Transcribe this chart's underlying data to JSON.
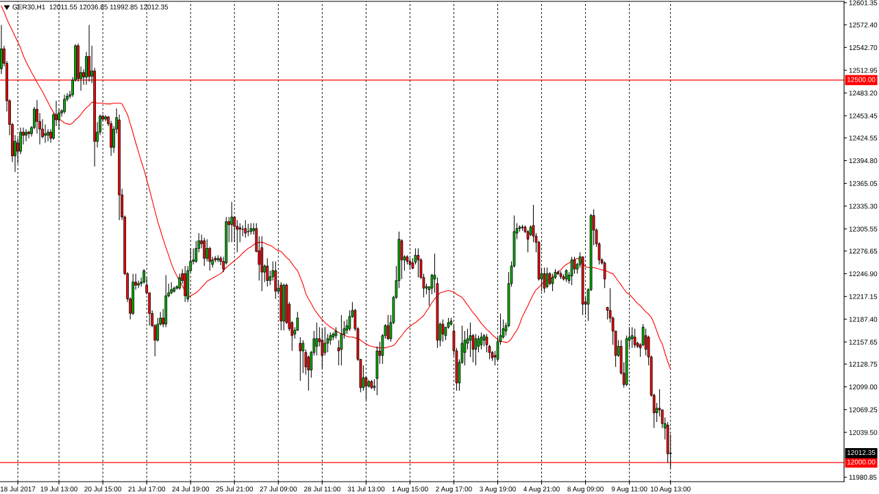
{
  "chart_data": {
    "type": "candlestick",
    "title": "GER30,H1  12011.55 12036.85 11992.85 12012.35",
    "categories": [
      null,
      null,
      null,
      null,
      null,
      null,
      "18 Jul 2017",
      null,
      null,
      null,
      null,
      null,
      null,
      null,
      null,
      null,
      null,
      null,
      null,
      null,
      null,
      "19 Jul 13:00",
      null,
      null,
      null,
      null,
      null,
      null,
      null,
      null,
      null,
      null,
      null,
      null,
      null,
      null,
      null,
      "20 Jul 15:00",
      null,
      null,
      null,
      null,
      null,
      null,
      null,
      null,
      null,
      null,
      null,
      null,
      null,
      null,
      null,
      "21 Jul 17:00",
      null,
      null,
      null,
      null,
      null,
      null,
      null,
      null,
      null,
      null,
      null,
      null,
      null,
      null,
      null,
      "24 Jul 19:00",
      null,
      null,
      null,
      null,
      null,
      null,
      null,
      null,
      null,
      null,
      null,
      null,
      null,
      null,
      null,
      "25 Jul 21:00",
      null,
      null,
      null,
      null,
      null,
      null,
      null,
      null,
      null,
      null,
      null,
      null,
      null,
      null,
      null,
      "27 Jul 09:00",
      null,
      null,
      null,
      null,
      null,
      null,
      null,
      null,
      null,
      null,
      null,
      null,
      null,
      null,
      null,
      "28 Jul 11:00",
      null,
      null,
      null,
      null,
      null,
      null,
      null,
      null,
      null,
      null,
      null,
      null,
      null,
      null,
      null,
      "31 Jul 13:00",
      null,
      null,
      null,
      null,
      null,
      null,
      null,
      null,
      null,
      null,
      null,
      null,
      null,
      null,
      null,
      "1 Aug 15:00",
      null,
      null,
      null,
      null,
      null,
      null,
      null,
      null,
      null,
      null,
      null,
      null,
      null,
      null,
      null,
      "2 Aug 17:00",
      null,
      null,
      null,
      null,
      null,
      null,
      null,
      null,
      null,
      null,
      null,
      null,
      null,
      null,
      null,
      "3 Aug 19:00",
      null,
      null,
      null,
      null,
      null,
      null,
      null,
      null,
      null,
      null,
      null,
      null,
      null,
      null,
      null,
      "4 Aug 21:00",
      null,
      null,
      null,
      null,
      null,
      null,
      null,
      null,
      null,
      null,
      null,
      null,
      null,
      null,
      null,
      "8 Aug 09:00",
      null,
      null,
      null,
      null,
      null,
      null,
      null,
      null,
      null,
      null,
      null,
      null,
      null,
      null,
      null,
      "9 Aug 11:00",
      null,
      null,
      null,
      null,
      null,
      null,
      null,
      null,
      null,
      null,
      null,
      null,
      null,
      null,
      "10 Aug 13:00"
    ],
    "ohlc": [
      [
        12515,
        12572,
        12508,
        12541
      ],
      [
        12541,
        12545,
        12518,
        12522
      ],
      [
        12522,
        12525,
        12459,
        12473
      ],
      [
        12473,
        12475,
        12428,
        12442
      ],
      [
        12442,
        12444,
        12393,
        12401
      ],
      [
        12401,
        12428,
        12380,
        12420
      ],
      [
        12418,
        12424,
        12391,
        12407
      ],
      [
        12407,
        12438,
        12403,
        12432
      ],
      [
        12432,
        12438,
        12416,
        12428
      ],
      [
        12428,
        12436,
        12420,
        12432
      ],
      [
        12432,
        12434,
        12424,
        12430
      ],
      [
        12430,
        12440,
        12426,
        12438
      ],
      [
        12438,
        12465,
        12436,
        12462
      ],
      [
        12462,
        12474,
        12430,
        12446
      ],
      [
        12446,
        12457,
        12416,
        12436
      ],
      [
        12436,
        12449,
        12424,
        12426
      ],
      [
        12428,
        12442,
        12418,
        12430
      ],
      [
        12428,
        12436,
        12420,
        12432
      ],
      [
        12432,
        12436,
        12418,
        12424
      ],
      [
        12424,
        12457,
        12422,
        12455
      ],
      [
        12455,
        12473,
        12440,
        12448
      ],
      [
        12448,
        12462,
        12436,
        12457
      ],
      [
        12457,
        12462,
        12452,
        12460
      ],
      [
        12459,
        12481,
        12456,
        12475
      ],
      [
        12475,
        12483,
        12472,
        12479
      ],
      [
        12479,
        12486,
        12476,
        12481
      ],
      [
        12481,
        12504,
        12478,
        12500
      ],
      [
        12500,
        12547,
        12498,
        12545
      ],
      [
        12545,
        12548,
        12498,
        12502
      ],
      [
        12502,
        12518,
        12486,
        12510
      ],
      [
        12510,
        12514,
        12494,
        12504
      ],
      [
        12504,
        12537,
        12494,
        12531
      ],
      [
        12531,
        12572,
        12498,
        12505
      ],
      [
        12505,
        12545,
        12496,
        12512
      ],
      [
        12512,
        12516,
        12387,
        12420
      ],
      [
        12420,
        12445,
        12412,
        12432
      ],
      [
        12432,
        12455,
        12428,
        12453
      ],
      [
        12453,
        12455,
        12447,
        12449
      ],
      [
        12449,
        12454,
        12446,
        12452
      ],
      [
        12452,
        12453,
        12440,
        12443
      ],
      [
        12443,
        12447,
        12401,
        12412
      ],
      [
        12412,
        12440,
        12405,
        12436
      ],
      [
        12436,
        12463,
        12430,
        12451
      ],
      [
        12448,
        12455,
        12317,
        12350
      ],
      [
        12350,
        12358,
        12317,
        12321
      ],
      [
        12321,
        12323,
        12245,
        12247
      ],
      [
        12247,
        12249,
        12210,
        12214
      ],
      [
        12214,
        12216,
        12187,
        12195
      ],
      [
        12195,
        12247,
        12193,
        12236
      ],
      [
        12236,
        12247,
        12226,
        12232
      ],
      [
        12232,
        12238,
        12228,
        12234
      ],
      [
        12234,
        12242,
        12230,
        12236
      ],
      [
        12236,
        12253,
        12234,
        12251
      ],
      [
        12232,
        12242,
        12220,
        12222
      ],
      [
        12222,
        12222,
        12179,
        12195
      ],
      [
        12195,
        12199,
        12177,
        12179
      ],
      [
        12179,
        12181,
        12139,
        12160
      ],
      [
        12160,
        12189,
        12158,
        12181
      ],
      [
        12181,
        12197,
        12179,
        12189
      ],
      [
        12189,
        12201,
        12177,
        12181
      ],
      [
        12181,
        12245,
        12177,
        12218
      ],
      [
        12218,
        12234,
        12216,
        12222
      ],
      [
        12222,
        12236,
        12220,
        12226
      ],
      [
        12224,
        12230,
        12222,
        12228
      ],
      [
        12228,
        12232,
        12226,
        12230
      ],
      [
        12228,
        12247,
        12226,
        12242
      ],
      [
        12247,
        12253,
        12234,
        12238
      ],
      [
        12247,
        12257,
        12210,
        12218
      ],
      [
        12214,
        12257,
        12210,
        12251
      ],
      [
        12251,
        12280,
        12249,
        12263
      ],
      [
        12263,
        12280,
        12259,
        12265
      ],
      [
        12263,
        12290,
        12261,
        12280
      ],
      [
        12280,
        12300,
        12275,
        12290
      ],
      [
        12290,
        12298,
        12280,
        12286
      ],
      [
        12290,
        12294,
        12257,
        12267
      ],
      [
        12267,
        12292,
        12263,
        12280
      ],
      [
        12280,
        12282,
        12251,
        12263
      ],
      [
        12259,
        12269,
        12255,
        12265
      ],
      [
        12267,
        12270,
        12262,
        12265
      ],
      [
        12265,
        12271,
        12262,
        12267
      ],
      [
        12267,
        12270,
        12258,
        12263
      ],
      [
        12263,
        12269,
        12249,
        12253
      ],
      [
        12261,
        12321,
        12259,
        12315
      ],
      [
        12315,
        12321,
        12288,
        12311
      ],
      [
        12311,
        12341,
        12288,
        12321
      ],
      [
        12321,
        12321,
        12288,
        12309
      ],
      [
        12309,
        12317,
        12275,
        12305
      ],
      [
        12307,
        12313,
        12288,
        12305
      ],
      [
        12305,
        12310,
        12296,
        12305
      ],
      [
        12306,
        12317,
        12294,
        12300
      ],
      [
        12302,
        12312,
        12296,
        12302
      ],
      [
        12302,
        12313,
        12298,
        12306
      ],
      [
        12303,
        12313,
        12298,
        12306
      ],
      [
        12306,
        12313,
        12275,
        12276
      ],
      [
        12277,
        12296,
        12238,
        12259
      ],
      [
        12281,
        12296,
        12224,
        12249
      ],
      [
        12249,
        12259,
        12236,
        12257
      ],
      [
        12257,
        12267,
        12230,
        12238
      ],
      [
        12238,
        12251,
        12232,
        12243
      ],
      [
        12243,
        12263,
        12238,
        12251
      ],
      [
        12251,
        12263,
        12214,
        12224
      ],
      [
        12224,
        12238,
        12220,
        12228
      ],
      [
        12232,
        12236,
        12173,
        12185
      ],
      [
        12185,
        12234,
        12173,
        12232
      ],
      [
        12232,
        12234,
        12181,
        12183
      ],
      [
        12207,
        12210,
        12172,
        12175
      ],
      [
        12183,
        12185,
        12146,
        12166
      ],
      [
        12168,
        12177,
        12162,
        12173
      ],
      [
        12173,
        12197,
        12172,
        12189
      ],
      [
        12156,
        12164,
        12107,
        12146
      ],
      [
        12146,
        12160,
        12117,
        12156
      ],
      [
        12144,
        12148,
        12115,
        12125
      ],
      [
        12138,
        12140,
        12094,
        12121
      ],
      [
        12121,
        12146,
        12111,
        12144
      ],
      [
        12144,
        12172,
        12140,
        12162
      ],
      [
        12152,
        12183,
        12140,
        12162
      ],
      [
        12162,
        12177,
        12152,
        12158
      ],
      [
        12160,
        12175,
        12123,
        12140
      ],
      [
        12144,
        12177,
        12140,
        12156
      ],
      [
        12156,
        12168,
        12144,
        12162
      ],
      [
        12160,
        12170,
        12154,
        12166
      ],
      [
        12164,
        12170,
        12160,
        12168
      ],
      [
        12166,
        12177,
        12162,
        12172
      ],
      [
        12150,
        12160,
        12127,
        12146
      ],
      [
        12148,
        12193,
        12127,
        12168
      ],
      [
        12168,
        12185,
        12162,
        12175
      ],
      [
        12173,
        12187,
        12168,
        12179
      ],
      [
        12175,
        12199,
        12172,
        12191
      ],
      [
        12191,
        12210,
        12189,
        12199
      ],
      [
        12199,
        12201,
        12172,
        12175
      ],
      [
        12175,
        12177,
        12133,
        12135
      ],
      [
        12135,
        12135,
        12092,
        12098
      ],
      [
        12098,
        12127,
        12094,
        12111
      ],
      [
        12111,
        12113,
        12082,
        12100
      ],
      [
        12100,
        12108,
        12098,
        12106
      ],
      [
        12106,
        12108,
        12096,
        12098
      ],
      [
        12098,
        12109,
        12094,
        12100
      ],
      [
        12110,
        12152,
        12088,
        12146
      ],
      [
        12146,
        12158,
        12129,
        12140
      ],
      [
        12140,
        12168,
        12129,
        12166
      ],
      [
        12166,
        12181,
        12162,
        12179
      ],
      [
        12179,
        12193,
        12160,
        12162
      ],
      [
        12162,
        12193,
        12158,
        12183
      ],
      [
        12183,
        12218,
        12181,
        12216
      ],
      [
        12216,
        12257,
        12214,
        12238
      ],
      [
        12238,
        12302,
        12228,
        12292
      ],
      [
        12290,
        12292,
        12240,
        12265
      ],
      [
        12265,
        12271,
        12251,
        12269
      ],
      [
        12269,
        12271,
        12259,
        12263
      ],
      [
        12263,
        12267,
        12253,
        12259
      ],
      [
        12261,
        12267,
        12253,
        12254
      ],
      [
        12262,
        12280,
        12259,
        12271
      ],
      [
        12271,
        12280,
        12242,
        12265
      ],
      [
        12265,
        12267,
        12240,
        12242
      ],
      [
        12242,
        12247,
        12216,
        12228
      ],
      [
        12228,
        12234,
        12220,
        12230
      ],
      [
        12226,
        12230,
        12205,
        12230
      ],
      [
        12228,
        12247,
        12220,
        12245
      ],
      [
        12240,
        12273,
        12222,
        12245
      ],
      [
        12234,
        12242,
        12150,
        12160
      ],
      [
        12160,
        12183,
        12152,
        12181
      ],
      [
        12181,
        12187,
        12158,
        12168
      ],
      [
        12166,
        12177,
        12160,
        12177
      ],
      [
        12177,
        12189,
        12175,
        12183
      ],
      [
        12181,
        12189,
        12179,
        12185
      ],
      [
        12172,
        12181,
        12140,
        12146
      ],
      [
        12146,
        12150,
        12094,
        12104
      ],
      [
        12104,
        12135,
        12094,
        12131
      ],
      [
        12131,
        12179,
        12129,
        12156
      ],
      [
        12144,
        12172,
        12127,
        12160
      ],
      [
        12156,
        12175,
        12148,
        12162
      ],
      [
        12160,
        12183,
        12138,
        12166
      ],
      [
        12166,
        12168,
        12131,
        12148
      ],
      [
        12148,
        12168,
        12127,
        12162
      ],
      [
        12152,
        12166,
        12144,
        12162
      ],
      [
        12154,
        12170,
        12148,
        12164
      ],
      [
        12160,
        12168,
        12152,
        12166
      ],
      [
        12164,
        12168,
        12144,
        12154
      ],
      [
        12152,
        12154,
        12135,
        12144
      ],
      [
        12144,
        12146,
        12133,
        12137
      ],
      [
        12140,
        12146,
        12127,
        12138
      ],
      [
        12135,
        12166,
        12133,
        12158
      ],
      [
        12158,
        12195,
        12154,
        12166
      ],
      [
        12164,
        12187,
        12162,
        12175
      ],
      [
        12172,
        12183,
        12166,
        12179
      ],
      [
        12179,
        12249,
        12177,
        12234
      ],
      [
        12234,
        12263,
        12230,
        12257
      ],
      [
        12257,
        12323,
        12255,
        12302
      ],
      [
        12300,
        12313,
        12292,
        12306
      ],
      [
        12306,
        12310,
        12302,
        12308
      ],
      [
        12308,
        12311,
        12303,
        12307
      ],
      [
        12308,
        12310,
        12300,
        12302
      ],
      [
        12302,
        12304,
        12275,
        12292
      ],
      [
        12298,
        12310,
        12296,
        12308
      ],
      [
        12310,
        12337,
        12288,
        12296
      ],
      [
        12296,
        12300,
        12275,
        12288
      ],
      [
        12288,
        12290,
        12238,
        12240
      ],
      [
        12240,
        12255,
        12224,
        12247
      ],
      [
        12247,
        12255,
        12222,
        12228
      ],
      [
        12230,
        12255,
        12228,
        12247
      ],
      [
        12247,
        12249,
        12232,
        12234
      ],
      [
        12234,
        12247,
        12224,
        12242
      ],
      [
        12242,
        12253,
        12240,
        12249
      ],
      [
        12249,
        12251,
        12245,
        12247
      ],
      [
        12247,
        12250,
        12240,
        12243
      ],
      [
        12243,
        12246,
        12238,
        12240
      ],
      [
        12240,
        12253,
        12236,
        12251
      ],
      [
        12238,
        12249,
        12234,
        12245
      ],
      [
        12244,
        12269,
        12232,
        12265
      ],
      [
        12265,
        12269,
        12247,
        12253
      ],
      [
        12253,
        12261,
        12247,
        12259
      ],
      [
        12259,
        12275,
        12255,
        12269
      ],
      [
        12269,
        12269,
        12193,
        12207
      ],
      [
        12210,
        12216,
        12193,
        12207
      ],
      [
        12207,
        12228,
        12185,
        12226
      ],
      [
        12226,
        12325,
        12224,
        12323
      ],
      [
        12323,
        12331,
        12284,
        12304
      ],
      [
        12304,
        12306,
        12282,
        12286
      ],
      [
        12286,
        12288,
        12259,
        12265
      ],
      [
        12265,
        12267,
        12259,
        12261
      ],
      [
        12261,
        12263,
        12228,
        12240
      ],
      [
        12203,
        12203,
        12187,
        12199
      ],
      [
        12199,
        12228,
        12183,
        12189
      ],
      [
        12189,
        12191,
        12154,
        12172
      ],
      [
        12172,
        12172,
        12125,
        12140
      ],
      [
        12140,
        12160,
        12138,
        12152
      ],
      [
        12152,
        12160,
        12115,
        12117
      ],
      [
        12117,
        12131,
        12098,
        12102
      ],
      [
        12102,
        12166,
        12100,
        12162
      ],
      [
        12160,
        12177,
        12150,
        12164
      ],
      [
        12162,
        12177,
        12150,
        12166
      ],
      [
        12164,
        12175,
        12150,
        12154
      ],
      [
        12156,
        12158,
        12150,
        12152
      ],
      [
        12154,
        12156,
        12138,
        12150
      ],
      [
        12154,
        12181,
        12152,
        12177
      ],
      [
        12166,
        12175,
        12140,
        12148
      ],
      [
        12164,
        12166,
        12127,
        12138
      ],
      [
        12138,
        12140,
        12086,
        12088
      ],
      [
        12088,
        12090,
        12045,
        12065
      ],
      [
        12065,
        12078,
        12053,
        12071
      ],
      [
        12071,
        12096,
        12060,
        12069
      ],
      [
        12069,
        12069,
        12045,
        12051
      ],
      [
        12045,
        12059,
        12030,
        12051
      ],
      [
        12049,
        12053,
        12000,
        12011.55
      ],
      [
        12011.55,
        12036.85,
        11992.85,
        12012.35
      ]
    ],
    "colors": [
      "#00b400",
      "#ff0000",
      "#ff0000",
      "#ff0000",
      "#ff0000",
      "#00b400",
      "#ff0000",
      "#00b400",
      "#ff0000",
      "#00b400",
      "#ff0000",
      "#00b400",
      "#00b400",
      "#ff0000",
      "#ff0000",
      "#ff0000",
      "#00b400",
      "#00b400",
      "#ff0000",
      "#00b400",
      "#ff0000",
      "#00b400",
      "#00b400",
      "#00b400",
      "#00b400",
      "#00b400",
      "#00b400",
      "#00b400",
      "#ff0000",
      "#00b400",
      "#ff0000",
      "#00b400",
      "#ff0000",
      "#00b400",
      "#ff0000",
      "#00b400",
      "#00b400",
      "#ff0000",
      "#00b400",
      "#ff0000",
      "#ff0000",
      "#00b400",
      "#00b400",
      "#ff0000",
      "#ff0000",
      "#ff0000",
      "#ff0000",
      "#ff0000",
      "#00b400",
      "#ff0000",
      "#00b400",
      "#00b400",
      "#00b400",
      "#ff0000",
      "#ff0000",
      "#ff0000",
      "#ff0000",
      "#00b400",
      "#00b400",
      "#ff0000",
      "#00b400",
      "#00b400",
      "#00b400",
      "#00b400",
      "#00b400",
      "#00b400",
      "#ff0000",
      "#ff0000",
      "#00b400",
      "#00b400",
      "#00b400",
      "#00b400",
      "#00b400",
      "#ff0000",
      "#ff0000",
      "#00b400",
      "#ff0000",
      "#00b400",
      "#ff0000",
      "#00b400",
      "#ff0000",
      "#ff0000",
      "#00b400",
      "#ff0000",
      "#00b400",
      "#ff0000",
      "#ff0000",
      "#ff0000",
      "#000000",
      "#ff0000",
      "#000000",
      "#00b400",
      "#00b400",
      "#ff0000",
      "#ff0000",
      "#ff0000",
      "#00b400",
      "#ff0000",
      "#00b400",
      "#00b400",
      "#ff0000",
      "#00b400",
      "#ff0000",
      "#00b400",
      "#ff0000",
      "#ff0000",
      "#ff0000",
      "#00b400",
      "#00b400",
      "#ff0000",
      "#00b400",
      "#ff0000",
      "#ff0000",
      "#00b400",
      "#00b400",
      "#00b400",
      "#ff0000",
      "#ff0000",
      "#00b400",
      "#00b400",
      "#00b400",
      "#00b400",
      "#00b400",
      "#ff0000",
      "#00b400",
      "#00b400",
      "#00b400",
      "#00b400",
      "#00b400",
      "#ff0000",
      "#ff0000",
      "#ff0000",
      "#00b400",
      "#ff0000",
      "#00b400",
      "#ff0000",
      "#00b400",
      "#00b400",
      "#ff0000",
      "#00b400",
      "#00b400",
      "#ff0000",
      "#00b400",
      "#00b400",
      "#00b400",
      "#00b400",
      "#ff0000",
      "#00b400",
      "#ff0000",
      "#ff0000",
      "#ff0000",
      "#00b400",
      "#ff0000",
      "#ff0000",
      "#ff0000",
      "#00b400",
      "#00b400",
      "#00b400",
      "#00b400",
      "#ff0000",
      "#00b400",
      "#ff0000",
      "#00b400",
      "#00b400",
      "#00b400",
      "#ff0000",
      "#ff0000",
      "#00b400",
      "#00b400",
      "#00b400",
      "#00b400",
      "#00b400",
      "#ff0000",
      "#00b400",
      "#00b400",
      "#00b400",
      "#00b400",
      "#ff0000",
      "#ff0000",
      "#ff0000",
      "#ff0000",
      "#00b400",
      "#00b400",
      "#00b400",
      "#00b400",
      "#00b400",
      "#00b400",
      "#00b400",
      "#00b400",
      "#00b400",
      "#ff0000",
      "#ff0000",
      "#ff0000",
      "#00b400",
      "#ff0000",
      "#ff0000",
      "#ff0000",
      "#00b400",
      "#ff0000",
      "#00b400",
      "#ff0000",
      "#00b400",
      "#00b400",
      "#ff0000",
      "#ff0000",
      "#ff0000",
      "#00b400",
      "#00b400",
      "#00b400",
      "#ff0000",
      "#00b400",
      "#00b400",
      "#ff0000",
      "#ff0000",
      "#00b400",
      "#00b400",
      "#ff0000",
      "#ff0000",
      "#ff0000",
      "#ff0000",
      "#ff0000",
      "#ff0000",
      "#ff0000",
      "#ff0000",
      "#ff0000",
      "#00b400",
      "#ff0000",
      "#ff0000",
      "#00b400",
      "#00b400",
      "#00b400",
      "#ff0000",
      "#ff0000",
      "#ff0000",
      "#00b400",
      "#ff0000",
      "#ff0000",
      "#ff0000",
      "#ff0000",
      "#00b400",
      "#ff0000",
      "#ff0000",
      "#00b400",
      "#ff0000",
      "#00b400"
    ],
    "series": [
      {
        "type": "line",
        "color": "#ff0000",
        "values": [
          12597,
          12589,
          12580,
          12572,
          12565,
          12557,
          12550,
          12542,
          12532,
          12524,
          12517,
          12510,
          12504,
          12497,
          12491,
          12485,
          12478,
          12471,
          12464,
          12458,
          12454,
          12449,
          12447,
          12444,
          12443,
          12442,
          12444,
          12448,
          12451,
          12455,
          12460,
          12464,
          12467,
          12471,
          12471,
          12470,
          12470,
          12470,
          12469,
          12469,
          12469,
          12470,
          12470,
          12470,
          12469,
          12462,
          12455,
          12443,
          12431,
          12418,
          12406,
          12394,
          12383,
          12370,
          12357,
          12343,
          12329,
          12315,
          12304,
          12292,
          12281,
          12271,
          12260,
          12251,
          12244,
          12237,
          12231,
          12224,
          12216,
          12218,
          12220,
          12222,
          12225,
          12229,
          12233,
          12237,
          12239,
          12241,
          12243,
          12245,
          12247,
          12251,
          12255,
          12258,
          12261,
          12264,
          12267,
          12270,
          12274,
          12277,
          12280,
          12282,
          12285,
          12287,
          12288,
          12288,
          12287,
          12285,
          12284,
          12282,
          12279,
          12277,
          12276,
          12272,
          12268,
          12265,
          12260,
          12255,
          12251,
          12242,
          12233,
          12221,
          12214,
          12208,
          12201,
          12196,
          12191,
          12187,
          12183,
          12180,
          12177,
          12175,
          12172,
          12170,
          12168,
          12167,
          12165,
          12164,
          12164,
          12163,
          12162,
          12160,
          12157,
          12155,
          12153,
          12152,
          12151,
          12150,
          12150,
          12150,
          12150,
          12151,
          12152,
          12153,
          12157,
          12162,
          12166,
          12171,
          12175,
          12178,
          12181,
          12183,
          12186,
          12189,
          12192,
          12198,
          12203,
          12209,
          12214,
          12218,
          12222,
          12223,
          12224,
          12225,
          12224,
          12223,
          12220,
          12218,
          12216,
          12211,
          12206,
          12201,
          12196,
          12192,
          12187,
          12182,
          12178,
          12174,
          12171,
          12167,
          12164,
          12161,
          12158,
          12158,
          12157,
          12158,
          12162,
          12168,
          12173,
          12181,
          12191,
          12198,
          12205,
          12213,
          12220,
          12226,
          12229,
          12233,
          12237,
          12238,
          12240,
          12242,
          12245,
          12249,
          12252,
          12256,
          12259,
          12261,
          12263,
          12265,
          12267,
          12265,
          12261,
          12256,
          12255,
          12255,
          12255,
          12254,
          12253,
          12252,
          12251,
          12250,
          12248,
          12247,
          12242,
          12237,
          12232,
          12227,
          12222,
          12220,
          12216,
          12212,
          12208,
          12205,
          12201,
          12197,
          12194,
          12190,
          12182,
          12172,
          12162,
          12155,
          12143,
          12132,
          12122
        ]
      }
    ],
    "ylim": [
      11975,
      12603
    ],
    "yticks": [
      12601.35,
      {
        "value": 12572.4,
        "label": "12572.40"
      },
      {
        "value": 12542.7,
        "label": "12542.70"
      },
      12512.95,
      {
        "value": 12483.2,
        "label": "12483.20"
      },
      12453.45,
      12424.55,
      {
        "value": 12394.8,
        "label": "12394.80"
      },
      12365.05,
      {
        "value": 12335.3,
        "label": "12335.30"
      },
      12305.55,
      12276.65,
      {
        "value": 12246.9,
        "label": "12246.90"
      },
      12217.15,
      {
        "value": 12187.4,
        "label": "12187.40"
      },
      12157.65,
      12128.75,
      {
        "value": 12099,
        "label": "12099.00"
      },
      12069.25,
      {
        "value": 12039.5,
        "label": "12039.50"
      },
      11980.85
    ],
    "ref_lines": [
      {
        "axis": "y",
        "value": 12500,
        "label": "12500.00",
        "color": "#ff0000"
      },
      {
        "axis": "y",
        "value": 12000,
        "label": "12000.00",
        "color": "#ff0000"
      }
    ],
    "annotations": [
      "12012.35"
    ],
    "grid": "x"
  }
}
